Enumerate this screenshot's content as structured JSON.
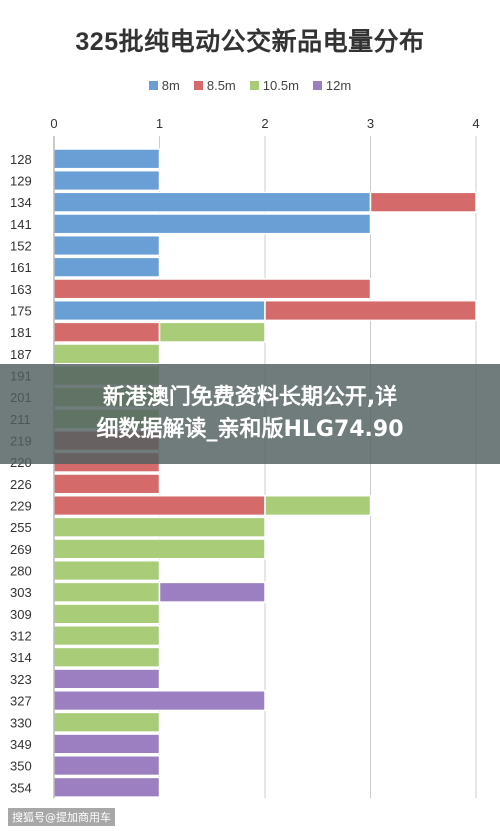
{
  "chart_data": {
    "type": "bar",
    "orientation": "horizontal",
    "stacked": true,
    "title": "325批纯电动公交新品电量分布",
    "xlabel": "",
    "ylabel": "",
    "xlim": [
      0,
      4
    ],
    "x_ticks": [
      "0",
      "1",
      "2",
      "3",
      "4"
    ],
    "grid": true,
    "legend_position": "top",
    "categories": [
      "128",
      "129",
      "134",
      "141",
      "152",
      "161",
      "163",
      "175",
      "181",
      "187",
      "191",
      "201",
      "211",
      "219",
      "220",
      "226",
      "229",
      "255",
      "269",
      "280",
      "303",
      "309",
      "312",
      "314",
      "323",
      "327",
      "330",
      "349",
      "350",
      "354"
    ],
    "series": [
      {
        "name": "8m",
        "color": "#6a9fd6",
        "values": [
          1,
          1,
          3,
          3,
          1,
          1,
          0,
          2,
          0,
          0,
          0,
          0,
          0,
          0,
          0,
          0,
          0,
          0,
          0,
          0,
          0,
          0,
          0,
          0,
          0,
          0,
          0,
          0,
          0,
          0
        ]
      },
      {
        "name": "8.5m",
        "color": "#d46a6a",
        "values": [
          0,
          0,
          1,
          0,
          0,
          0,
          3,
          2,
          1,
          0,
          0,
          0,
          0,
          1,
          1,
          1,
          2,
          0,
          0,
          0,
          0,
          0,
          0,
          0,
          0,
          0,
          0,
          0,
          0,
          0
        ]
      },
      {
        "name": "10.5m",
        "color": "#a8cc78",
        "values": [
          0,
          0,
          0,
          0,
          0,
          0,
          0,
          0,
          1,
          1,
          1,
          1,
          1,
          0,
          0,
          0,
          1,
          2,
          2,
          1,
          1,
          1,
          1,
          1,
          0,
          0,
          1,
          0,
          0,
          0
        ]
      },
      {
        "name": "12m",
        "color": "#9b7fc0",
        "values": [
          0,
          0,
          0,
          0,
          0,
          0,
          0,
          0,
          0,
          0,
          0,
          0,
          0,
          0,
          0,
          0,
          0,
          0,
          0,
          0,
          1,
          0,
          0,
          0,
          1,
          2,
          0,
          1,
          1,
          1
        ]
      }
    ]
  },
  "overlay": {
    "line1": "新港澳门免费资料长期公开,详",
    "line2": "细数据解读_亲和版HLG74.90"
  },
  "footer": {
    "text": "搜狐号@提加商用车"
  },
  "colors": {
    "grid": "#cccccc",
    "bar_stroke": "#ffffff",
    "axis_text": "#333333"
  }
}
